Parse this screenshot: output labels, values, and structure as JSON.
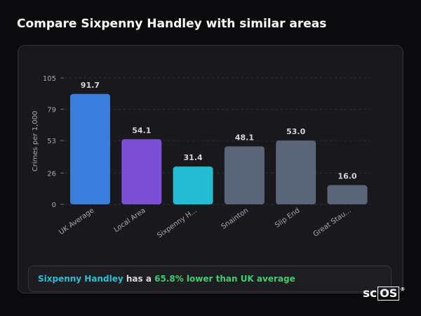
{
  "page": {
    "title": "Compare Sixpenny Handley with similar areas"
  },
  "chart_data": {
    "type": "bar",
    "ylabel": "Crimes per 1,000",
    "xlabel": "",
    "ylim": [
      0,
      105
    ],
    "yticks": [
      0,
      26,
      53,
      79,
      105
    ],
    "categories": [
      "UK Average",
      "Local Area",
      "Sixpenny H...",
      "Snainton",
      "Slip End",
      "Great Stau..."
    ],
    "values": [
      91.7,
      54.1,
      31.4,
      48.1,
      53.0,
      16.0
    ],
    "value_labels": [
      "91.7",
      "54.1",
      "31.4",
      "48.1",
      "53.0",
      "16.0"
    ],
    "colors": [
      "#3b7ddd",
      "#7b4fd6",
      "#23bcd4",
      "#5a6577",
      "#5a6577",
      "#5a6577"
    ],
    "grid": "dashed horizontal"
  },
  "summary": {
    "area": "Sixpenny Handley",
    "middle": "has a",
    "stat": "65.8% lower than UK average"
  },
  "logo": {
    "part1": "sc",
    "part2": "OS",
    "mark": "®"
  }
}
